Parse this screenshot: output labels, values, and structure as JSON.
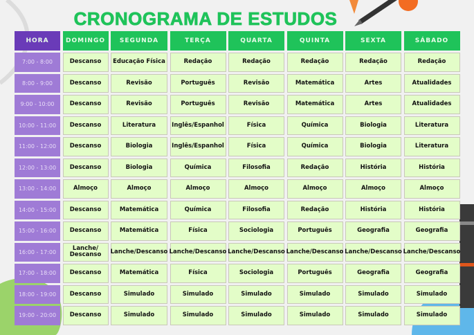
{
  "title": "CRONOGRAMA DE ESTUDOS",
  "headers": [
    "HORA",
    "DOMINGO",
    "SEGUNDA",
    "TERÇA",
    "QUARTA",
    "QUINTA",
    "SEXTA",
    "SÁBADO"
  ],
  "rows": [
    {
      "time": "7:00 - 8:00",
      "cells": [
        "Descanso",
        "Educação Física",
        "Redação",
        "Redação",
        "Redação",
        "Redação",
        "Redação"
      ]
    },
    {
      "time": "8:00 - 9:00",
      "cells": [
        "Descanso",
        "Revisão",
        "Português",
        "Revisão",
        "Matemática",
        "Artes",
        "Atualidades"
      ]
    },
    {
      "time": "9:00 - 10:00",
      "cells": [
        "Descanso",
        "Revisão",
        "Português",
        "Revisão",
        "Matemática",
        "Artes",
        "Atualidades"
      ]
    },
    {
      "time": "10:00 - 11:00",
      "cells": [
        "Descanso",
        "Literatura",
        "Inglês/Espanhol",
        "Física",
        "Química",
        "Biologia",
        "Literatura"
      ]
    },
    {
      "time": "11:00 - 12:00",
      "cells": [
        "Descanso",
        "Biologia",
        "Inglês/Espanhol",
        "Física",
        "Química",
        "Biologia",
        "Literatura"
      ]
    },
    {
      "time": "12:00 - 13:00",
      "cells": [
        "Descanso",
        "Biologia",
        "Química",
        "Filosofia",
        "Redação",
        "História",
        "História"
      ]
    },
    {
      "time": "13:00 - 14:00",
      "cells": [
        "Almoço",
        "Almoço",
        "Almoço",
        "Almoço",
        "Almoço",
        "Almoço",
        "Almoço"
      ]
    },
    {
      "time": "14:00 - 15:00",
      "cells": [
        "Descanso",
        "Matemática",
        "Química",
        "Filosofia",
        "Redação",
        "História",
        "História"
      ]
    },
    {
      "time": "15:00 - 16:00",
      "cells": [
        "Descanso",
        "Matemática",
        "Física",
        "Sociologia",
        "Português",
        "Geografia",
        "Geografia"
      ]
    },
    {
      "time": "16:00 - 17:00",
      "cells": [
        "Lanche/ Descanso",
        "Lanche/Descanso",
        "Lanche/Descanso",
        "Lanche/Descanso",
        "Lanche/Descanso",
        "Lanche/Descanso",
        "Lanche/Descanso"
      ]
    },
    {
      "time": "17:00 - 18:00",
      "cells": [
        "Descanso",
        "Matemática",
        "Física",
        "Sociologia",
        "Português",
        "Geografia",
        "Geografia"
      ]
    },
    {
      "time": "18:00 - 19:00",
      "cells": [
        "Descanso",
        "Simulado",
        "Simulado",
        "Simulado",
        "Simulado",
        "Simulado",
        "Simulado"
      ]
    },
    {
      "time": "19:00 - 20:00",
      "cells": [
        "Descanso",
        "Simulado",
        "Simulado",
        "Simulado",
        "Simulado",
        "Simulado",
        "Simulado"
      ]
    }
  ],
  "colors": {
    "title": "#1fc35a",
    "header": "#1fc35a",
    "hora_header": "#6a3bb8",
    "time_cell": "#9f7bd6",
    "cell": "#e3fdc8"
  },
  "decorations": [
    "pencil-icon",
    "green-leaf-shape",
    "blue-blob-shape",
    "books-image"
  ]
}
